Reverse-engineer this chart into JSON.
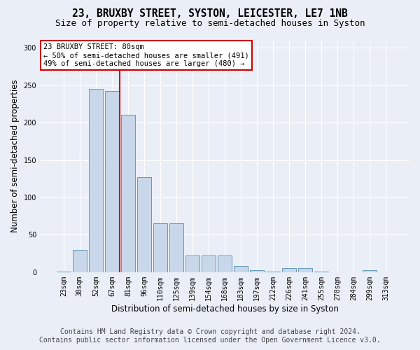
{
  "title": "23, BRUXBY STREET, SYSTON, LEICESTER, LE7 1NB",
  "subtitle": "Size of property relative to semi-detached houses in Syston",
  "xlabel": "Distribution of semi-detached houses by size in Syston",
  "ylabel": "Number of semi-detached properties",
  "categories": [
    "23sqm",
    "38sqm",
    "52sqm",
    "67sqm",
    "81sqm",
    "96sqm",
    "110sqm",
    "125sqm",
    "139sqm",
    "154sqm",
    "168sqm",
    "183sqm",
    "197sqm",
    "212sqm",
    "226sqm",
    "241sqm",
    "255sqm",
    "270sqm",
    "284sqm",
    "299sqm",
    "313sqm"
  ],
  "values": [
    1,
    30,
    245,
    242,
    210,
    127,
    65,
    65,
    22,
    22,
    22,
    8,
    3,
    1,
    5,
    5,
    1,
    0,
    0,
    3,
    0
  ],
  "bar_color": "#c8d8ea",
  "bar_edge_color": "#6699bb",
  "subject_line_index": 3,
  "subject_line_color": "#cc0000",
  "annotation_text": "23 BRUXBY STREET: 80sqm\n← 50% of semi-detached houses are smaller (491)\n49% of semi-detached houses are larger (480) →",
  "annotation_box_color": "#ffffff",
  "annotation_box_edge": "#cc0000",
  "ylim": [
    0,
    310
  ],
  "yticks": [
    0,
    50,
    100,
    150,
    200,
    250,
    300
  ],
  "footer_line1": "Contains HM Land Registry data © Crown copyright and database right 2024.",
  "footer_line2": "Contains public sector information licensed under the Open Government Licence v3.0.",
  "bg_color": "#eaeff7",
  "title_fontsize": 10.5,
  "subtitle_fontsize": 9,
  "axis_label_fontsize": 8.5,
  "tick_fontsize": 7,
  "footer_fontsize": 7,
  "annotation_fontsize": 7.5
}
